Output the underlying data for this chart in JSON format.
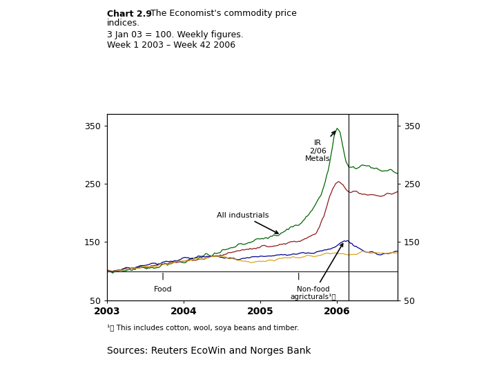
{
  "title_bold": "Chart 2.9",
  "title_normal": " The Economist's commodity price\nindices.",
  "subtitle1": "3 Jan 03 = 100. Weekly figures.",
  "subtitle2": "Week 1 2003 – Week 42 2006",
  "yticks": [
    50,
    150,
    250,
    350
  ],
  "ylim": [
    50,
    370
  ],
  "xtick_labels": [
    "2003",
    "2004",
    "2005",
    "2006"
  ],
  "footnote": "¹⧩ This includes cotton, wool, soya beans and timber.",
  "sources": "Sources: Reuters EcoWin and Norges Bank",
  "line_colors": {
    "metals": "#006400",
    "all_industrials": "#8B1A1A",
    "non_food_ag": "#00008B",
    "food": "#DAA520"
  },
  "annotation_ir": "IR\n2/06\nMetals",
  "annotation_all_ind": "All industrials",
  "annotation_food": "Food",
  "annotation_nonfood": "Non-food\nagricturals¹⧩"
}
